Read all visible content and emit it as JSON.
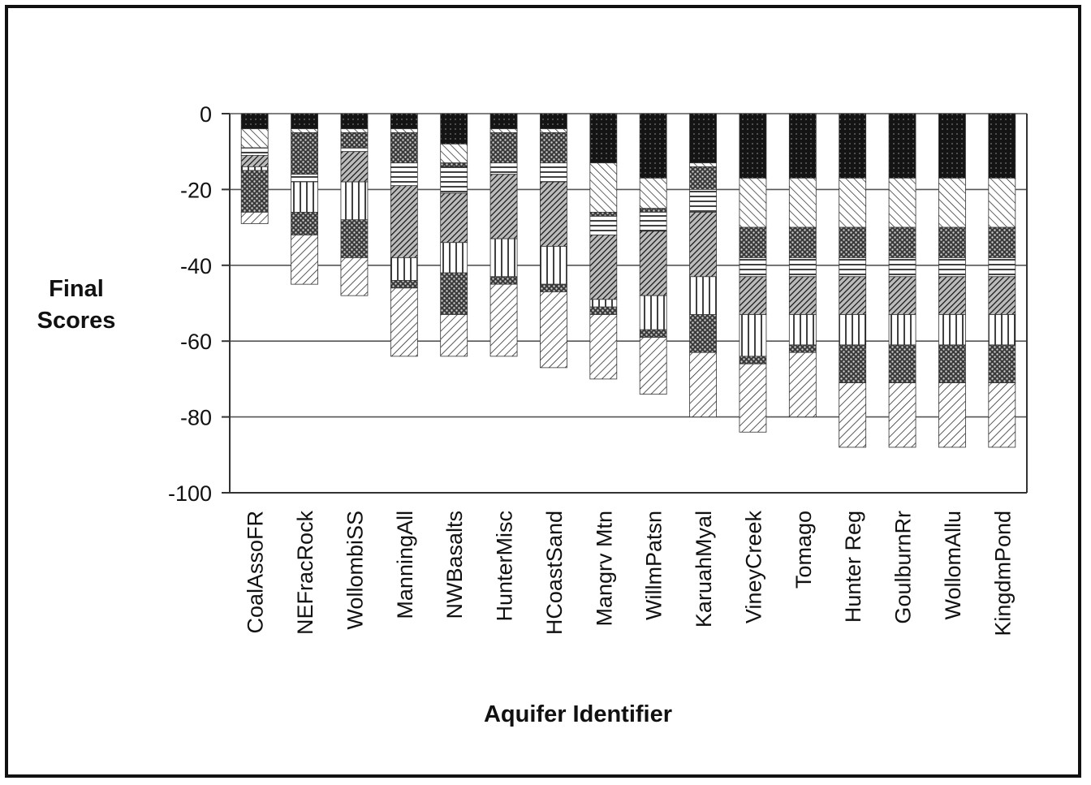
{
  "chart_data": {
    "type": "bar",
    "stacked": true,
    "title": "",
    "ylabel_lines": [
      "Final",
      "Scores"
    ],
    "xlabel": "Aquifer Identifier",
    "ylim": [
      -100,
      0
    ],
    "yticks": [
      0,
      -20,
      -40,
      -60,
      -80,
      -100
    ],
    "grid": "horizontal",
    "categories": [
      "CoalAssoFR",
      "NEFracRock",
      "WollombiSS",
      "ManningAll",
      "NWBasalts",
      "HunterMisc",
      "HCoastSand",
      "Mangrv Mtn",
      "WillmPatsn",
      "KaruahMyal",
      "VineyCreek",
      "Tomago",
      "Hunter Reg",
      "GoulburnRr",
      "WollomAllu",
      "KingdmPond"
    ],
    "series": [
      {
        "pattern": "dark-dotted",
        "values": [
          -4,
          -4,
          -4,
          -4,
          -8,
          -4,
          -4,
          -13,
          -17,
          -13,
          -17,
          -17,
          -17,
          -17,
          -17,
          -17
        ]
      },
      {
        "pattern": "diagonal-light",
        "values": [
          -5,
          -1,
          -1,
          -1,
          -5,
          -1,
          -1,
          -13,
          -8,
          -1,
          -13,
          -13,
          -13,
          -13,
          -13,
          -13
        ]
      },
      {
        "pattern": "crosshatch",
        "values": [
          0,
          -11,
          -4,
          -8,
          -1,
          -8,
          -8,
          -1,
          -1,
          -6,
          -8,
          -8,
          -8,
          -8,
          -8,
          -8
        ]
      },
      {
        "pattern": "horizontal-lines",
        "values": [
          -2,
          -2,
          -1,
          -6,
          -7,
          -3,
          -5,
          -5,
          -5,
          -6,
          -5,
          -5,
          -5,
          -5,
          -5,
          -5
        ]
      },
      {
        "pattern": "diagonal-dense",
        "values": [
          -3,
          0,
          -8,
          -19,
          -13,
          -17,
          -17,
          -17,
          -17,
          -17,
          -10,
          -10,
          -10,
          -10,
          -10,
          -10
        ]
      },
      {
        "pattern": "vertical-lines",
        "values": [
          -1,
          -8,
          -10,
          -6,
          -8,
          -10,
          -10,
          -2,
          -9,
          -10,
          -11,
          -8,
          -8,
          -8,
          -8,
          -8
        ]
      },
      {
        "pattern": "crosshatch",
        "values": [
          -11,
          -6,
          -10,
          -2,
          -11,
          -2,
          -2,
          -2,
          -2,
          -10,
          -2,
          -2,
          -10,
          -10,
          -10,
          -10
        ]
      },
      {
        "pattern": "diagonal-medium",
        "values": [
          -3,
          -13,
          -10,
          -18,
          -11,
          -19,
          -20,
          -17,
          -15,
          -17,
          -18,
          -17,
          -17,
          -17,
          -17,
          -17
        ]
      }
    ]
  }
}
